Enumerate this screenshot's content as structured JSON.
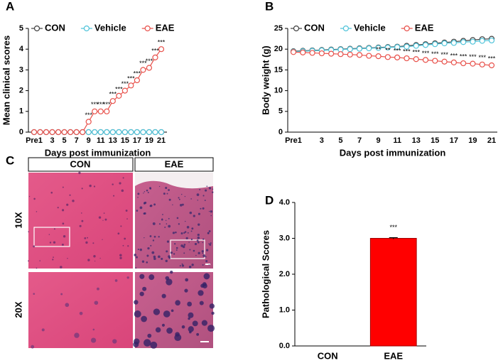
{
  "chart_data": [
    {
      "type": "line",
      "panel": "A",
      "ylabel": "Mean clinical scores",
      "xlabel": "Days post immunization",
      "categories": [
        "Pre1",
        null,
        null,
        "3",
        null,
        "5",
        null,
        "7",
        null,
        "9",
        null,
        "11",
        null,
        "13",
        null,
        "15",
        null,
        "17",
        null,
        "19",
        null,
        "21"
      ],
      "ylim": [
        0,
        5
      ],
      "yticks": [
        0,
        1,
        2,
        3,
        4,
        5
      ],
      "legend": "top",
      "series": [
        {
          "name": "CON",
          "color": "#404040",
          "values": [
            0,
            0,
            0,
            0,
            0,
            0,
            0,
            0,
            0,
            0,
            0,
            0,
            0,
            0,
            0,
            0,
            0,
            0,
            0,
            0,
            0,
            0
          ]
        },
        {
          "name": "Vehicle",
          "color": "#4fc3d9",
          "values": [
            0,
            0,
            0,
            0,
            0,
            0,
            0,
            0,
            0,
            0,
            0,
            0,
            0,
            0,
            0,
            0,
            0,
            0,
            0,
            0,
            0,
            0
          ]
        },
        {
          "name": "EAE",
          "color": "#e8504a",
          "values": [
            0,
            0,
            0,
            0,
            0,
            0,
            0,
            0,
            0,
            0.5,
            1,
            1,
            1,
            1.5,
            1.75,
            2,
            2.25,
            2.5,
            3,
            3.1,
            3.6,
            4
          ],
          "significance": [
            null,
            null,
            null,
            null,
            null,
            null,
            null,
            null,
            null,
            "***",
            "***",
            "***",
            "***",
            "***",
            "***",
            "***",
            "***",
            "***",
            "***",
            "***",
            "***",
            "***"
          ]
        }
      ]
    },
    {
      "type": "line",
      "panel": "B",
      "ylabel": "Body weight (g)",
      "xlabel": "Days post immunization",
      "categories": [
        "Pre1",
        null,
        null,
        "3",
        null,
        "5",
        null,
        "7",
        null,
        "9",
        null,
        "11",
        null,
        "13",
        null,
        "15",
        null,
        "17",
        null,
        "19",
        null,
        "21"
      ],
      "ylim": [
        0,
        25
      ],
      "yticks": [
        0,
        5,
        10,
        15,
        20,
        25
      ],
      "legend": "top",
      "series": [
        {
          "name": "CON",
          "color": "#404040",
          "values": [
            19.5,
            19.6,
            19.7,
            19.8,
            19.9,
            20,
            20.1,
            20.2,
            20.3,
            20.4,
            20.5,
            20.6,
            20.8,
            21,
            21.2,
            21.4,
            21.6,
            21.8,
            22,
            22.2,
            22.4,
            22.5
          ]
        },
        {
          "name": "Vehicle",
          "color": "#4fc3d9",
          "values": [
            19.4,
            19.5,
            19.6,
            19.7,
            19.8,
            19.9,
            20,
            20.1,
            20.2,
            20.3,
            20.4,
            20.5,
            20.6,
            20.8,
            21,
            21.2,
            21.4,
            21.5,
            21.7,
            21.8,
            22,
            22.1
          ]
        },
        {
          "name": "EAE",
          "color": "#e8504a",
          "values": [
            19.3,
            19.2,
            19.1,
            19,
            18.9,
            18.8,
            18.7,
            18.6,
            18.4,
            18.3,
            18.1,
            18,
            17.8,
            17.6,
            17.4,
            17.2,
            17,
            16.8,
            16.6,
            16.5,
            16.3,
            16.1
          ],
          "significance": [
            null,
            null,
            null,
            null,
            null,
            null,
            null,
            null,
            null,
            "**",
            "**",
            "***",
            "***",
            "***",
            "***",
            "***",
            "***",
            "***",
            "***",
            "***",
            "***",
            "***"
          ]
        }
      ]
    },
    {
      "type": "bar",
      "panel": "D",
      "ylabel": "Pathological Scores",
      "categories": [
        "CON",
        "EAE"
      ],
      "values": [
        0,
        3.0
      ],
      "errors": [
        0,
        0.02
      ],
      "color": "#ff0000",
      "significance": [
        null,
        "***"
      ],
      "ylim": [
        0,
        4
      ],
      "yticks": [
        {
          "value": 0,
          "label": "0.0"
        },
        {
          "value": 1,
          "label": "1.0"
        },
        {
          "value": 2,
          "label": "2.0"
        },
        {
          "value": 3,
          "label": "3.0"
        },
        {
          "value": 4,
          "label": "4.0"
        }
      ]
    }
  ],
  "histology": {
    "panel": "C",
    "columns": [
      "CON",
      "EAE"
    ],
    "rows": [
      "10X",
      "20X"
    ]
  }
}
